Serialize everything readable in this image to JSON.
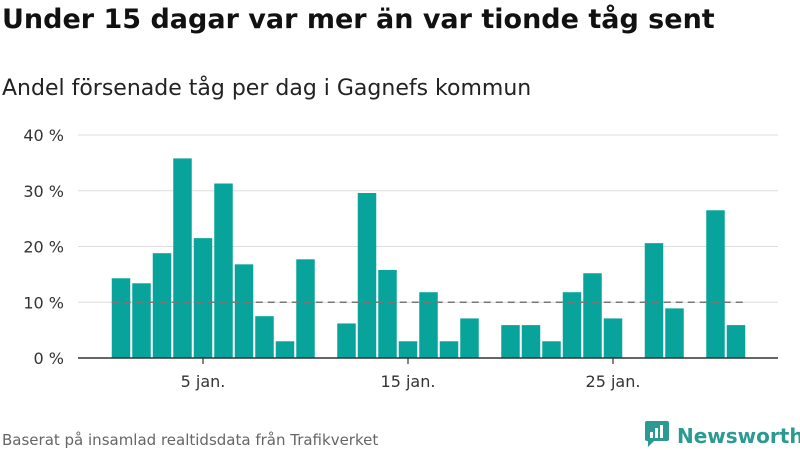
{
  "header": {
    "title": "Under 15 dagar var mer än var tionde tåg sent",
    "subtitle": "Andel försenade tåg per dag i Gagnefs kommun"
  },
  "footer": {
    "source": "Baserat på insamlad realtidsdata från Trafikverket",
    "brand": "Newsworthy",
    "brand_icon": "newsworthy-logo-icon"
  },
  "colors": {
    "bar": "#08a39a",
    "reference_line": "#777777",
    "grid": "#dddddd",
    "axis": "#333333",
    "brand": "#2b9a92"
  },
  "chart_data": {
    "type": "bar",
    "ylim": [
      0,
      40
    ],
    "yticks": [
      0,
      10,
      20,
      30,
      40
    ],
    "ytick_labels": [
      "0 %",
      "10 %",
      "20 %",
      "30 %",
      "40 %"
    ],
    "grid": true,
    "x": [
      1,
      2,
      3,
      4,
      5,
      6,
      7,
      8,
      9,
      10,
      11,
      12,
      13,
      14,
      15,
      16,
      17,
      18,
      19,
      20,
      21,
      22,
      23,
      24,
      25,
      26,
      27,
      28,
      29,
      30,
      31
    ],
    "values": [
      14.3,
      13.4,
      18.8,
      35.8,
      21.5,
      31.3,
      16.8,
      7.5,
      3.0,
      17.7,
      null,
      6.2,
      29.6,
      15.8,
      3.0,
      11.8,
      3.0,
      7.1,
      null,
      5.9,
      5.9,
      3.0,
      11.8,
      15.2,
      7.1,
      null,
      20.6,
      8.9,
      null,
      26.5,
      5.9
    ],
    "xticks": [
      5,
      15,
      25
    ],
    "xtick_labels": [
      "5 jan.",
      "15 jan.",
      "25 jan."
    ],
    "reference_line": 10
  }
}
